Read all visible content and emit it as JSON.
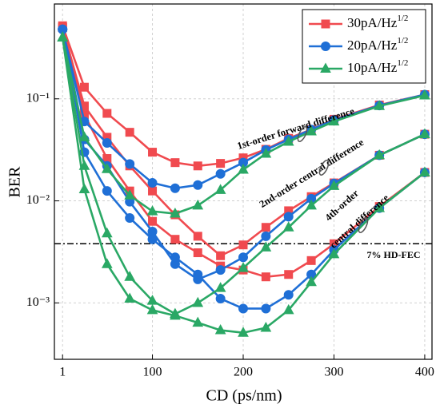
{
  "chart_data": {
    "type": "line",
    "xlabel": "CD (ps/nm)",
    "ylabel": "BER",
    "x": [
      1,
      25,
      50,
      75,
      100,
      125,
      150,
      175,
      200,
      225,
      250,
      275,
      300,
      350,
      400
    ],
    "xlim": [
      -8,
      408
    ],
    "xticks": [
      1,
      100,
      200,
      300,
      400
    ],
    "ylim": [
      0.00028,
      0.85
    ],
    "log_y": true,
    "yticks": [
      {
        "value": 0.001,
        "label": "10⁻³"
      },
      {
        "value": 0.01,
        "label": "10⁻²"
      },
      {
        "value": 0.1,
        "label": "10⁻¹"
      }
    ],
    "grid": true,
    "legend": "upper right",
    "series": [
      {
        "name": "30pA/Hz1/2",
        "color": "#f04a4f",
        "marker": "square",
        "curves": [
          [
            0.52,
            0.13,
            0.072,
            0.047,
            0.03,
            0.0237,
            0.022,
            0.0233,
            0.0264,
            0.032,
            0.041,
            0.05,
            0.063,
            0.087,
            0.11
          ],
          [
            0.5,
            0.085,
            0.042,
            0.022,
            0.0125,
            0.0073,
            0.0045,
            0.0029,
            0.0037,
            0.0055,
            0.008,
            0.011,
            0.015,
            0.028,
            0.045
          ],
          [
            0.5,
            0.07,
            0.026,
            0.0125,
            0.0063,
            0.0042,
            0.0031,
            0.0023,
            0.0021,
            0.0018,
            0.0019,
            0.0026,
            0.0038,
            0.0088,
            0.019
          ]
        ]
      },
      {
        "name": "20pA/Hz1/2",
        "color": "#1f6fd6",
        "marker": "circle",
        "curves": [
          [
            0.48,
            0.06,
            0.037,
            0.023,
            0.015,
            0.0133,
            0.0143,
            0.0184,
            0.0237,
            0.0316,
            0.04,
            0.05,
            0.062,
            0.086,
            0.11
          ],
          [
            0.48,
            0.04,
            0.022,
            0.0098,
            0.005,
            0.0024,
            0.0017,
            0.0021,
            0.0028,
            0.0045,
            0.007,
            0.0105,
            0.0148,
            0.028,
            0.045
          ],
          [
            0.48,
            0.03,
            0.0125,
            0.0068,
            0.0042,
            0.0028,
            0.0019,
            0.0011,
            0.00088,
            0.00088,
            0.0012,
            0.0019,
            0.0033,
            0.0085,
            0.019
          ]
        ]
      },
      {
        "name": "10pA/Hz1/2",
        "color": "#2aa865",
        "marker": "triangle",
        "curves": [
          [
            0.4,
            0.042,
            0.0205,
            0.0113,
            0.0079,
            0.0075,
            0.009,
            0.0128,
            0.0202,
            0.029,
            0.038,
            0.048,
            0.06,
            0.085,
            0.108
          ],
          [
            0.4,
            0.022,
            0.0048,
            0.0018,
            0.00105,
            0.00078,
            0.001,
            0.0014,
            0.0022,
            0.0035,
            0.0055,
            0.009,
            0.014,
            0.028,
            0.045
          ],
          [
            0.4,
            0.013,
            0.0024,
            0.0011,
            0.00085,
            0.00075,
            0.00064,
            0.00054,
            0.00051,
            0.00057,
            0.00085,
            0.0016,
            0.003,
            0.0085,
            0.019
          ]
        ]
      }
    ],
    "threshold": {
      "value": 0.0038,
      "label": "7% HD-FEC"
    },
    "annotations": [
      "1st-order forward difference",
      "2nd-order central difference",
      "4th-order",
      "central difference"
    ]
  }
}
